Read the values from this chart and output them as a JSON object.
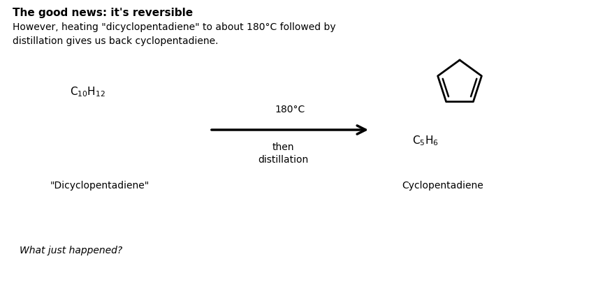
{
  "title_bold": "The good news: it's reversible",
  "subtitle": "However, heating \"dicyclopentadiene\" to about 180°C followed by\ndistillation gives us back cyclopentadiene.",
  "reactant_label": "\"Dicyclopentadiene\"",
  "product_label": "Cyclopentadiene",
  "condition_above": "180°C",
  "condition_below": "then\ndistillation",
  "footnote": "What just happened?",
  "bg_color": "#ffffff",
  "text_color": "#000000",
  "arrow_color": "#000000",
  "figsize": [
    8.76,
    4.04
  ],
  "dpi": 100
}
